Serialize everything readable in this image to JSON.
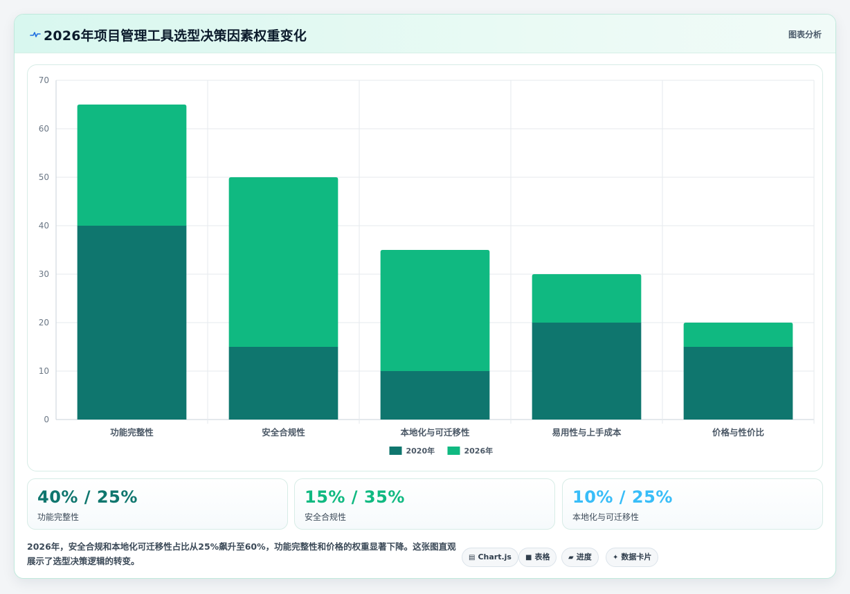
{
  "header": {
    "title": "2026年项目管理工具选型决策因素权重变化",
    "action_label": "图表分析",
    "icon": "pulse-icon",
    "accent_color": "#1e6fe0"
  },
  "chart_data": {
    "type": "bar",
    "stacked": true,
    "categories": [
      "功能完整性",
      "安全合规性",
      "本地化与可迁移性",
      "易用性与上手成本",
      "价格与性价比"
    ],
    "series": [
      {
        "name": "2020年",
        "values": [
          40,
          15,
          10,
          20,
          15
        ],
        "color": "#0f766e"
      },
      {
        "name": "2026年",
        "values": [
          25,
          35,
          25,
          10,
          5
        ],
        "color": "#10b981"
      }
    ],
    "y_ticks": [
      "0",
      "10",
      "20",
      "30",
      "40",
      "50",
      "60",
      "70"
    ],
    "ylim": [
      0,
      70
    ],
    "grid": true,
    "legend_position": "bottom"
  },
  "stats": [
    {
      "value": "40% / 25%",
      "label": "功能完整性",
      "color": "#0f766e"
    },
    {
      "value": "15% / 35%",
      "label": "安全合规性",
      "color": "#10b981"
    },
    {
      "value": "10% / 25%",
      "label": "本地化与可迁移性",
      "color": "#38bdf8"
    }
  ],
  "summary": "2026年，安全合规和本地化可迁移性占比从25%飙升至60%，功能完整性和价格的权重显著下降。这张图直观展示了选型决策逻辑的转变。",
  "tags": [
    {
      "icon": "chart-icon",
      "glyph": "▤",
      "label": "Chart.js"
    },
    {
      "icon": "table-icon",
      "glyph": "■",
      "label": "表格"
    },
    {
      "icon": "folder-icon",
      "glyph": "▰",
      "label": "进度"
    },
    {
      "icon": "sparkle-icon",
      "glyph": "✦",
      "label": "数据卡片"
    }
  ]
}
